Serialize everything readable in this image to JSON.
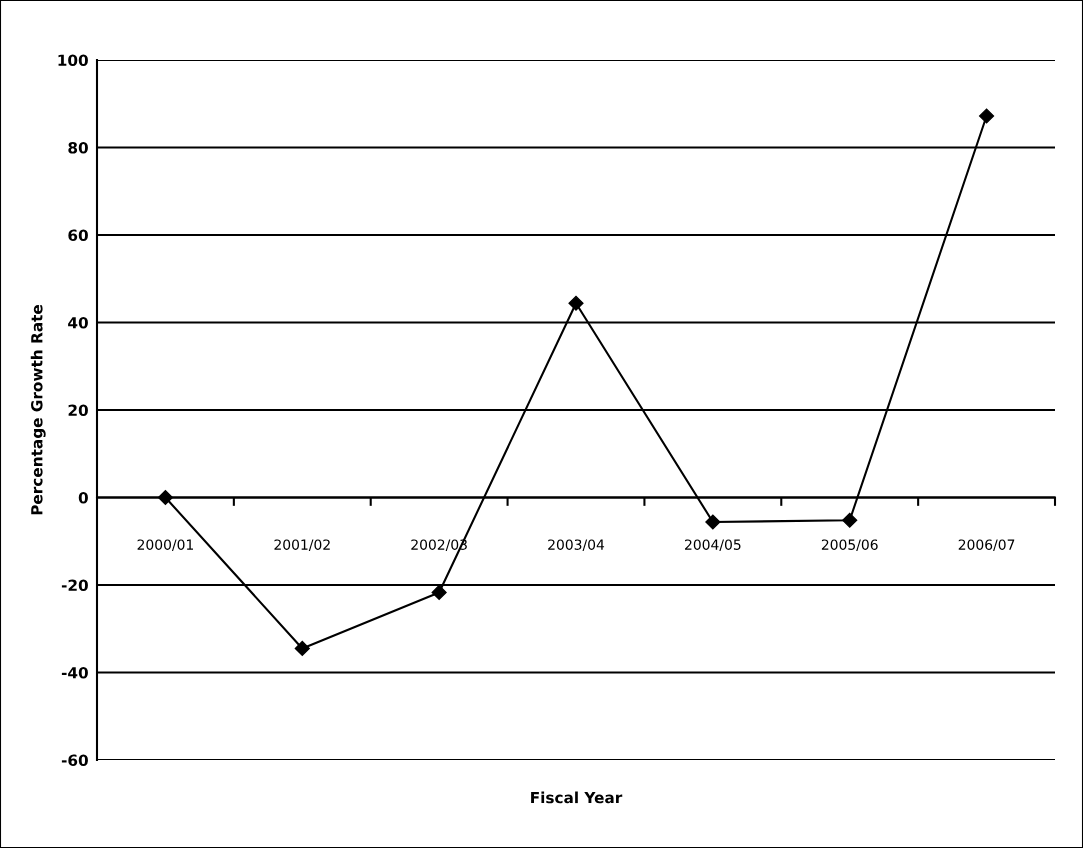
{
  "chart_data": {
    "type": "line",
    "xlabel": "Fiscal Year",
    "ylabel": "Percentage Growth Rate",
    "categories": [
      "2000/01",
      "2001/02",
      "2002/03",
      "2003/04",
      "2004/05",
      "2005/06",
      "2006/07"
    ],
    "series": [
      {
        "color": "#000000",
        "values": [
          0,
          -34.5,
          -21.7,
          44.4,
          -5.6,
          -5.2,
          87.2
        ]
      }
    ],
    "ylim": [
      -60,
      100
    ],
    "yticks": [
      -60,
      -40,
      -20,
      0,
      20,
      40,
      60,
      80,
      100
    ],
    "grid": "y",
    "marker": "diamond",
    "line_style": "solid",
    "legend": false
  }
}
